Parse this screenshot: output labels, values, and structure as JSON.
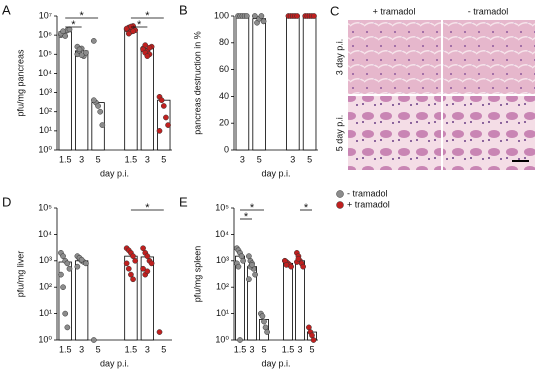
{
  "chart_data": [
    {
      "type": "bar",
      "panel": "A",
      "ylabel": "pfu/mg pancreas",
      "xlabel": "day p.i.",
      "log_scale": true,
      "ylim": [
        1,
        10000000
      ],
      "yticks": [
        {
          "value": 1,
          "label": "10⁰"
        },
        {
          "value": 10,
          "label": "10¹"
        },
        {
          "value": 100,
          "label": "10²"
        },
        {
          "value": 1000,
          "label": "10³"
        },
        {
          "value": 10000,
          "label": "10⁴"
        },
        {
          "value": 100000,
          "label": "10⁵"
        },
        {
          "value": 1000000,
          "label": "10⁶"
        },
        {
          "value": 10000000,
          "label": "10⁷"
        }
      ],
      "groups": [
        {
          "color": "#8c8c8c",
          "categories": [
            "1.5",
            "3",
            "5"
          ],
          "values": [
            1500000,
            150000,
            300
          ],
          "points": [
            [
              1000000,
              1300000,
              1500000,
              1800000,
              2000000,
              1200000,
              1600000,
              900000
            ],
            [
              100000,
              150000,
              200000,
              80000,
              120000,
              250000,
              180000,
              90000
            ],
            [
              500000,
              300,
              200,
              100,
              20,
              400
            ]
          ],
          "significance": [
            {
              "from": 0,
              "to": 2,
              "label": "*"
            },
            {
              "from": 0,
              "to": 1,
              "label": "*"
            }
          ]
        },
        {
          "color": "#c0201f",
          "categories": [
            "1.5",
            "3",
            "5"
          ],
          "values": [
            2000000,
            200000,
            400
          ],
          "points": [
            [
              2000000,
              2500000,
              1500000,
              3000000,
              1800000,
              2200000,
              1200000,
              2800000,
              1600000
            ],
            [
              200000,
              300000,
              150000,
              100000,
              250000,
              180000,
              120000,
              80000,
              220000
            ],
            [
              600,
              400,
              200,
              50,
              20,
              10
            ]
          ],
          "significance": [
            {
              "from": 0,
              "to": 2,
              "label": "*"
            },
            {
              "from": 0,
              "to": 1,
              "label": "*"
            }
          ]
        }
      ]
    },
    {
      "type": "bar",
      "panel": "B",
      "ylabel": "pancreas destruction in %",
      "xlabel": "day p.i.",
      "log_scale": false,
      "ylim": [
        0,
        100
      ],
      "yticks": [
        0,
        20,
        40,
        60,
        80,
        100
      ],
      "groups": [
        {
          "color": "#8c8c8c",
          "categories": [
            "3",
            "5"
          ],
          "values": [
            100,
            98
          ],
          "points": [
            [
              100,
              100,
              100,
              100,
              100
            ],
            [
              100,
              95,
              98,
              100,
              96
            ]
          ],
          "significance": []
        },
        {
          "color": "#c0201f",
          "categories": [
            "3",
            "5"
          ],
          "values": [
            100,
            100
          ],
          "points": [
            [
              100,
              100,
              100,
              100,
              100
            ],
            [
              100,
              100,
              100,
              100,
              100
            ]
          ],
          "significance": []
        }
      ]
    },
    {
      "type": "bar",
      "panel": "D",
      "ylabel": "pfu/mg liver",
      "xlabel": "day p.i.",
      "log_scale": true,
      "ylim": [
        1,
        100000
      ],
      "yticks": [
        {
          "value": 1,
          "label": "10⁰"
        },
        {
          "value": 10,
          "label": "10¹"
        },
        {
          "value": 100,
          "label": "10²"
        },
        {
          "value": 1000,
          "label": "10³"
        },
        {
          "value": 10000,
          "label": "10⁴"
        },
        {
          "value": 100000,
          "label": "10⁵"
        }
      ],
      "groups": [
        {
          "color": "#8c8c8c",
          "categories": [
            "1.5",
            "3",
            "5"
          ],
          "values": [
            900,
            1000,
            null
          ],
          "points": [
            [
              2000,
              1500,
              1000,
              800,
              500,
              300,
              100,
              10,
              3
            ],
            [
              1500,
              1200,
              1000,
              900,
              800,
              600,
              1300,
              1100
            ],
            [
              1
            ]
          ],
          "significance": []
        },
        {
          "color": "#c0201f",
          "categories": [
            "1.5",
            "3",
            "5"
          ],
          "values": [
            1500,
            1400,
            null
          ],
          "points": [
            [
              3000,
              2500,
              2000,
              1500,
              1000,
              800,
              500,
              300,
              200
            ],
            [
              3000,
              2000,
              1500,
              1000,
              800,
              500,
              300,
              400
            ],
            [
              2
            ]
          ],
          "significance": [
            {
              "from": 0,
              "to": 2,
              "label": "*"
            }
          ]
        }
      ]
    },
    {
      "type": "bar",
      "panel": "E",
      "ylabel": "pfu/mg spleen",
      "xlabel": "day p.i.",
      "log_scale": true,
      "legend": true,
      "ylim": [
        1,
        100000
      ],
      "yticks": [
        {
          "value": 1,
          "label": "10⁰"
        },
        {
          "value": 10,
          "label": "10¹"
        },
        {
          "value": 100,
          "label": "10²"
        },
        {
          "value": 1000,
          "label": "10³"
        },
        {
          "value": 10000,
          "label": "10⁴"
        },
        {
          "value": 100000,
          "label": "10⁵"
        }
      ],
      "groups": [
        {
          "name": "- tramadol",
          "color": "#8c8c8c",
          "categories": [
            "1.5",
            "3",
            "5"
          ],
          "values": [
            1500,
            600,
            6
          ],
          "points": [
            [
              3000,
              2500,
              2000,
              1500,
              1000,
              800,
              600,
              1
            ],
            [
              1500,
              1000,
              800,
              500,
              300,
              200,
              600,
              700
            ],
            [
              10,
              8,
              5,
              3,
              2
            ]
          ],
          "significance": [
            {
              "from": 0,
              "to": 2,
              "label": "*"
            },
            {
              "from": 0,
              "to": 1,
              "label": "*"
            }
          ]
        },
        {
          "name": "+ tramadol",
          "color": "#c0201f",
          "categories": [
            "1.5",
            "3",
            "5"
          ],
          "values": [
            800,
            1000,
            2
          ],
          "points": [
            [
              1000,
              900,
              800,
              700,
              600,
              1000,
              700
            ],
            [
              2000,
              1500,
              1000,
              800,
              600,
              900,
              1200
            ],
            [
              3,
              2,
              1.5,
              1
            ]
          ],
          "significance": [
            {
              "from": 1,
              "to": 2,
              "label": "*"
            }
          ]
        }
      ]
    }
  ],
  "histology": {
    "panel": "C",
    "columns": [
      "+ tramadol",
      "- tramadol"
    ],
    "rows": [
      "3 day p.i.",
      "5 day p.i."
    ]
  }
}
